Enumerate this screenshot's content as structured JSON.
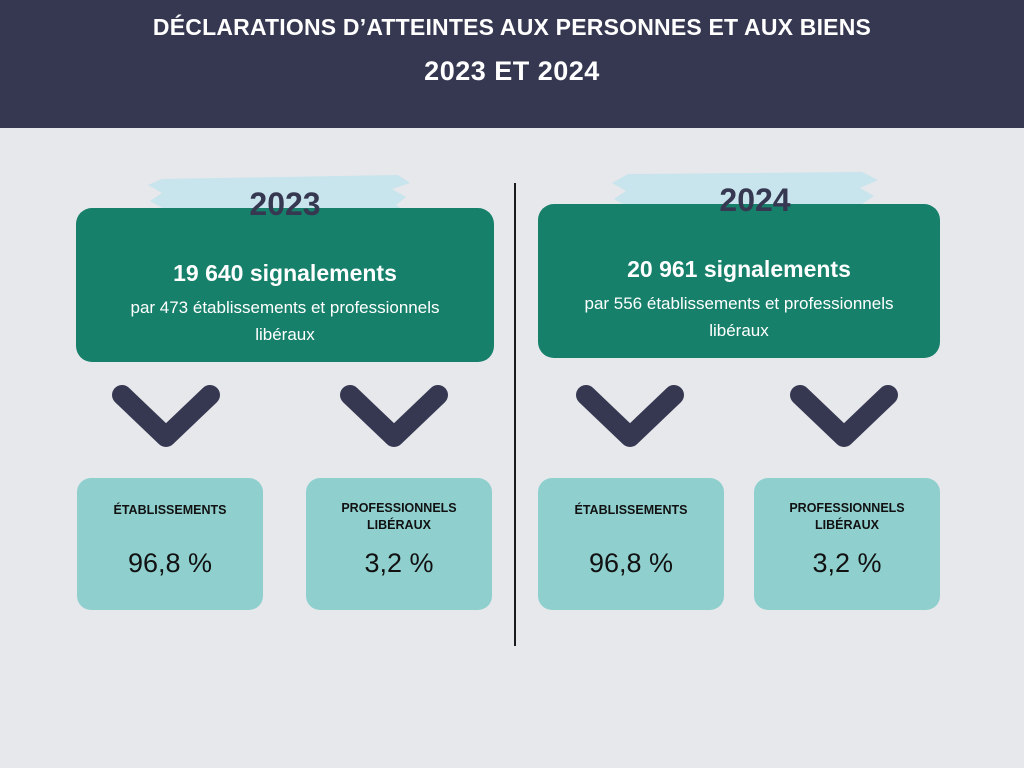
{
  "header": {
    "title_line1": "DÉCLARATIONS D’ATTEINTES AUX PERSONNES ET AUX BIENS",
    "title_line2": "2023 ET 2024"
  },
  "colors": {
    "header_bg": "#363851",
    "background": "#e7e8ec",
    "card_green": "#17806a",
    "card_teal": "#8fd0cf",
    "chevron": "#363851",
    "brush": "#c6e4ec"
  },
  "years": [
    {
      "year": "2023",
      "headline": "19 640 signalements",
      "detail": "par 473 établissements et professionnels libéraux",
      "stats": [
        {
          "label": "ÉTABLISSEMENTS",
          "value": "96,8 %"
        },
        {
          "label": "PROFESSIONNELS LIBÉRAUX",
          "value": "3,2 %"
        }
      ]
    },
    {
      "year": "2024",
      "headline": "20 961 signalements",
      "detail": "par 556 établissements et professionnels libéraux",
      "stats": [
        {
          "label": "ÉTABLISSEMENTS",
          "value": "96,8 %"
        },
        {
          "label": "PROFESSIONNELS LIBÉRAUX",
          "value": "3,2 %"
        }
      ]
    }
  ]
}
